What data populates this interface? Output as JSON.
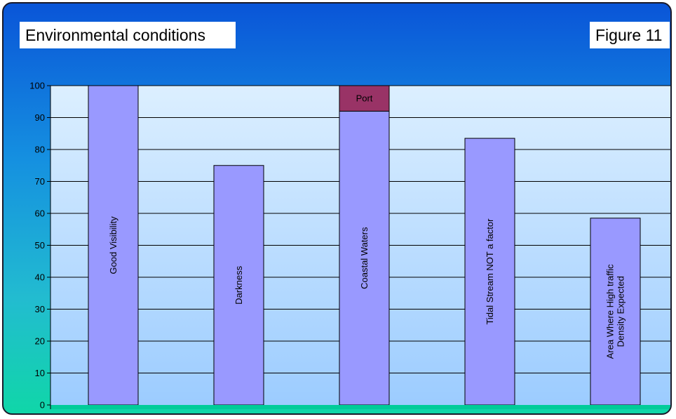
{
  "header": {
    "title": "Environmental conditions",
    "figure_label": "Figure 11"
  },
  "colors": {
    "bar": "#9999ff",
    "stack": "#993366",
    "plot_top": "#dcefff",
    "plot_bottom": "#9cccff",
    "floor": "#00cc99"
  },
  "chart_data": {
    "type": "bar",
    "title": "Environmental conditions",
    "xlabel": "",
    "ylabel": "",
    "ylim": [
      0,
      100
    ],
    "yticks": [
      0,
      10,
      20,
      30,
      40,
      50,
      60,
      70,
      80,
      90,
      100
    ],
    "grid": true,
    "categories": [
      "Good Visibility",
      "Darkness",
      "Coastal Waters",
      "Tidal Stream NOT a factor",
      "Area Where High traffic Density Expected"
    ],
    "label_lines": [
      [
        "Good Visibility"
      ],
      [
        "Darkness"
      ],
      [
        "Coastal Waters"
      ],
      [
        "Tidal Stream NOT a factor"
      ],
      [
        "Area Where High traffic",
        "Density Expected"
      ]
    ],
    "values": [
      100,
      75,
      92,
      83.5,
      58.5
    ],
    "stacked": [
      {
        "category": "Coastal Waters",
        "label": "Port",
        "value": 8
      }
    ]
  }
}
